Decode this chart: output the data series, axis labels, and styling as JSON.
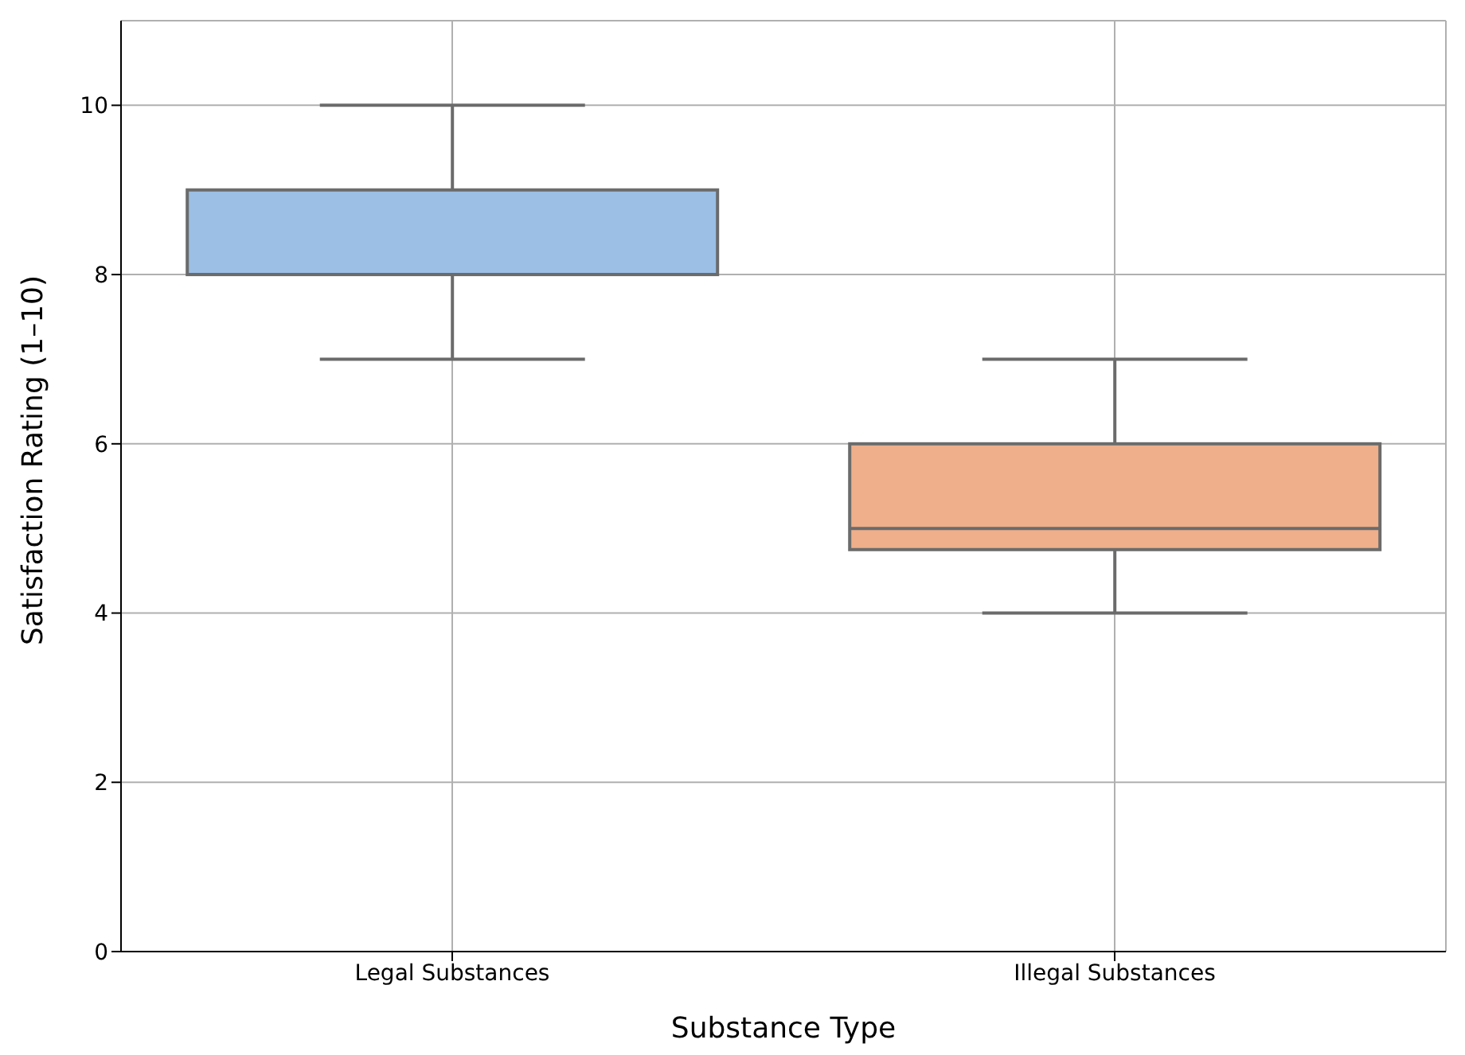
{
  "chart_data": {
    "type": "box",
    "xlabel": "Substance Type",
    "ylabel": "Satisfaction Rating (1–10)",
    "categories": [
      "Legal Substances",
      "Illegal Substances"
    ],
    "boxes": [
      {
        "low": 7,
        "q1": 8,
        "median": 8,
        "q3": 9,
        "high": 10
      },
      {
        "low": 4,
        "q1": 4.75,
        "median": 5,
        "q3": 6,
        "high": 7
      }
    ],
    "colors": [
      "#9bbfe5",
      "#eeaf8a"
    ],
    "ylim": [
      0,
      11
    ],
    "yticks": [
      0,
      2,
      4,
      6,
      8,
      10
    ],
    "grid": true
  }
}
